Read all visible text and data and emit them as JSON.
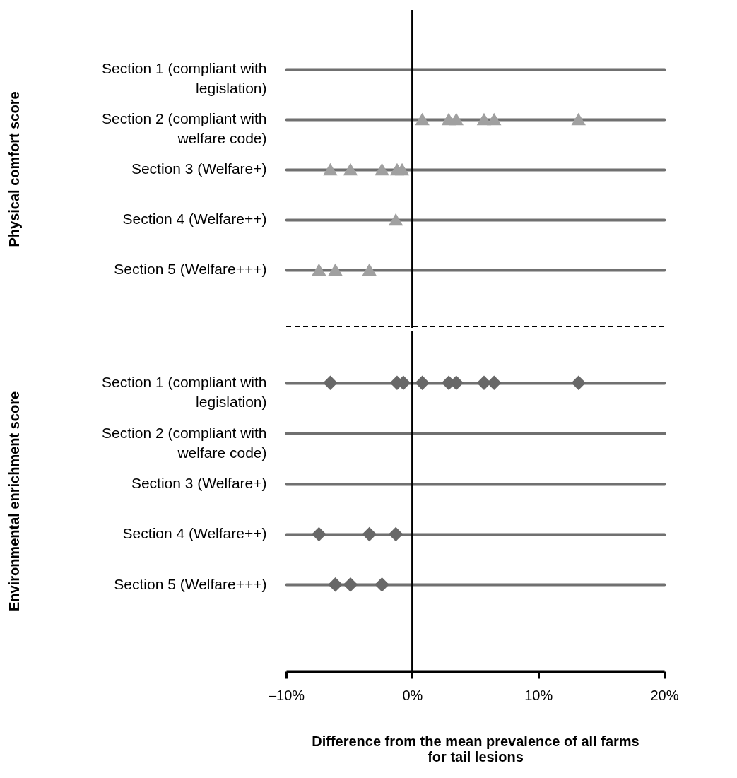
{
  "chart_data": [
    {
      "type": "scatter",
      "orientation": "horizontal",
      "ylabel": "Physical comfort score",
      "categories": [
        "Section 1 (compliant with legislation)",
        "Section 2 (compliant with welfare code)",
        "Section 3 (Welfare+)",
        "Section 4 (Welfare++)",
        "Section 5 (Welfare+++)"
      ],
      "series": [
        {
          "color": "#a0a0a0",
          "values": [
            null,
            0.8,
            -6.5,
            -1.3,
            -7.4
          ]
        },
        {
          "color": "#a0a0a0",
          "values": [
            null,
            2.9,
            -4.9,
            null,
            -6.1
          ]
        },
        {
          "color": "#a0a0a0",
          "values": [
            null,
            3.5,
            -2.4,
            null,
            -3.4
          ]
        },
        {
          "color": "#a0a0a0",
          "values": [
            null,
            5.7,
            -1.2,
            null,
            null
          ]
        },
        {
          "color": "#a0a0a0",
          "values": [
            null,
            6.5,
            -0.8,
            null,
            null
          ]
        },
        {
          "color": "#a0a0a0",
          "values": [
            null,
            13.2,
            null,
            null,
            null
          ]
        }
      ],
      "marker": "triangle",
      "grid": "y",
      "xlim": [
        -10,
        20
      ],
      "tick_labels": "y",
      "ref_lines": [
        {
          "axis": "x",
          "value": 0,
          "color": "#000000"
        }
      ]
    },
    {
      "type": "scatter",
      "orientation": "horizontal",
      "ylabel": "Environmental enrichment score",
      "xlabel": "Difference from the mean prevalence of all farms for tail lesions",
      "categories": [
        "Section 1 (compliant with legislation)",
        "Section 2 (compliant with welfare code)",
        "Section 3 (Welfare+)",
        "Section 4 (Welfare++)",
        "Section 5 (Welfare+++)"
      ],
      "series": [
        {
          "color": "#686868",
          "values": [
            -6.5,
            null,
            null,
            -7.4,
            -6.1
          ]
        },
        {
          "color": "#686868",
          "values": [
            -1.2,
            null,
            null,
            -3.4,
            -4.9
          ]
        },
        {
          "color": "#686868",
          "values": [
            -0.7,
            null,
            null,
            -1.3,
            -2.4
          ]
        },
        {
          "color": "#686868",
          "values": [
            0.8,
            null,
            null,
            null,
            null
          ]
        },
        {
          "color": "#686868",
          "values": [
            2.9,
            null,
            null,
            null,
            null
          ]
        },
        {
          "color": "#686868",
          "values": [
            3.5,
            null,
            null,
            null,
            null
          ]
        },
        {
          "color": "#686868",
          "values": [
            5.7,
            null,
            null,
            null,
            null
          ]
        },
        {
          "color": "#686868",
          "values": [
            6.5,
            null,
            null,
            null,
            null
          ]
        },
        {
          "color": "#686868",
          "values": [
            13.2,
            null,
            null,
            null,
            null
          ]
        }
      ],
      "marker": "diamond",
      "grid": "y",
      "xlim": [
        -10,
        20
      ],
      "xticks": [
        {
          "value": -10,
          "label": "–10%"
        },
        {
          "value": 0,
          "label": "0%"
        },
        {
          "value": 10,
          "label": "10%"
        },
        {
          "value": 20,
          "label": "20%"
        }
      ],
      "ref_lines": [
        {
          "axis": "x",
          "value": 0,
          "color": "#000000"
        }
      ]
    }
  ]
}
